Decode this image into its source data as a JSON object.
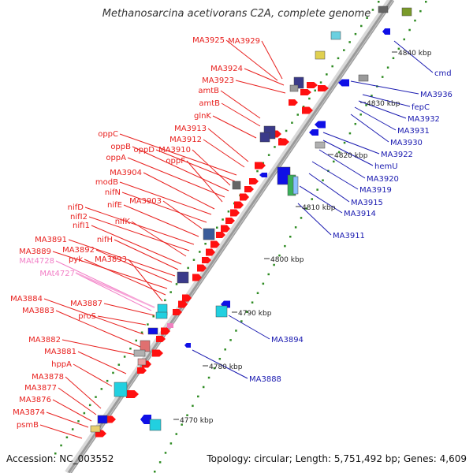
{
  "title": "Methanosarcina acetivorans C2A, complete genome",
  "footer": {
    "accession": "Accession: NC_003552",
    "summary": "Topology: circular; Length: 5,751,492 bp; Genes: 4,609"
  },
  "colors": {
    "forward_label": "#e8201e",
    "reverse_label": "#1a1ab0",
    "rna_label": "#f27ec6",
    "backbone": "#9a9a9a",
    "tick": "#2e8b22"
  },
  "scale_labels": [
    "4840 kbp",
    "4830 kbp",
    "4820 kbp",
    "4810 kbp",
    "4800 kbp",
    "4790 kbp",
    "4780 kbp",
    "4770 kbp"
  ],
  "forward_labels": [
    "MA3925",
    "MA3929",
    "MA3924",
    "MA3923",
    "amtB",
    "amtB",
    "glnK",
    "MA3913",
    "MA3912",
    "oppC",
    "oppD",
    "MA3910",
    "oppB",
    "oppA",
    "oppF",
    "MA3904",
    "modB",
    "nifN",
    "MA3903",
    "nifE",
    "nifD",
    "nifI2",
    "nifK",
    "nifI1",
    "nifH",
    "MA3891",
    "MA3892",
    "MA3889",
    "pyk",
    "MA3893",
    "MA3884",
    "MA3887",
    "MA3883",
    "proS",
    "MA3882",
    "MA3881",
    "hppA",
    "MA3878",
    "MA3877",
    "MA3876",
    "MA3874",
    "psmB"
  ],
  "rna_labels": [
    "MAt4728",
    "MAt4727"
  ],
  "reverse_labels": [
    "cmd",
    "MA3936",
    "fepC",
    "MA3932",
    "MA3931",
    "MA3930",
    "MA3922",
    "hemU",
    "MA3920",
    "MA3919",
    "MA3915",
    "MA3914",
    "MA3911",
    "MA3894",
    "MA3888"
  ]
}
